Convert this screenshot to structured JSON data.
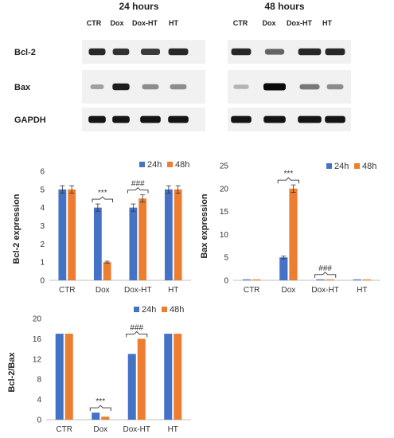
{
  "colors": {
    "h24": "#4472C4",
    "h48": "#ED7D31",
    "axis": "#BFBFBF",
    "band": "#1a1a1a"
  },
  "blots": {
    "panels": [
      {
        "title": "24 hours",
        "lanes": [
          "CTR",
          "Dox",
          "Dox-HT",
          "HT"
        ]
      },
      {
        "title": "48 hours",
        "lanes": [
          "CTR",
          "Dox",
          "Dox-HT",
          "HT"
        ]
      }
    ],
    "rows": [
      "Bcl-2",
      "Bax",
      "GAPDH"
    ],
    "intensity": {
      "Bcl-2": [
        [
          0.85,
          0.8,
          0.75,
          0.85
        ],
        [
          0.85,
          0.55,
          0.85,
          0.85
        ]
      ],
      "Bax": [
        [
          0.25,
          0.9,
          0.35,
          0.35
        ],
        [
          0.15,
          1.0,
          0.45,
          0.35
        ]
      ],
      "GAPDH": [
        [
          0.95,
          0.95,
          0.95,
          0.95
        ],
        [
          0.95,
          0.95,
          0.95,
          0.95
        ]
      ]
    }
  },
  "chart_data": [
    {
      "type": "bar",
      "categories": [
        "CTR",
        "Dox",
        "Dox-HT",
        "HT"
      ],
      "series": [
        {
          "name": "24h",
          "values": [
            5,
            4,
            4,
            5
          ],
          "errors": [
            0.2,
            0.2,
            0.2,
            0.2
          ]
        },
        {
          "name": "48h",
          "values": [
            5,
            1,
            4.5,
            5
          ],
          "errors": [
            0.2,
            0.05,
            0.2,
            0.2
          ]
        }
      ],
      "ylabel": "Bcl-2 expression",
      "ylim": [
        0,
        6
      ],
      "yticks": [
        "0",
        "1",
        "2",
        "3",
        "4",
        "5",
        "6"
      ],
      "legend": "top-right",
      "annotations": [
        {
          "text": "***",
          "category": "Dox"
        },
        {
          "text": "###",
          "category": "Dox-HT"
        }
      ]
    },
    {
      "type": "bar",
      "categories": [
        "CTR",
        "Dox",
        "Dox-HT",
        "HT"
      ],
      "series": [
        {
          "name": "24h",
          "values": [
            0.2,
            5,
            0.2,
            0.2
          ],
          "errors": [
            0,
            0.3,
            0,
            0
          ]
        },
        {
          "name": "48h",
          "values": [
            0.2,
            20,
            0.2,
            0.2
          ],
          "errors": [
            0,
            0.8,
            0,
            0
          ]
        }
      ],
      "ylabel": "Bax expression",
      "ylim": [
        0,
        25
      ],
      "yticks": [
        "0",
        "5",
        "10",
        "15",
        "20",
        "25"
      ],
      "legend": "top-right",
      "annotations": [
        {
          "text": "***",
          "category": "Dox"
        },
        {
          "text": "###",
          "category": "Dox-HT"
        }
      ]
    },
    {
      "type": "bar",
      "categories": [
        "CTR",
        "Dox",
        "Dox-HT",
        "HT"
      ],
      "series": [
        {
          "name": "24h",
          "values": [
            17,
            1.4,
            13,
            17
          ]
        },
        {
          "name": "48h",
          "values": [
            17,
            0.6,
            16,
            17
          ]
        }
      ],
      "ylabel": "Bcl-2/Bax",
      "ylim": [
        0,
        20
      ],
      "yticks": [
        "0",
        "4",
        "8",
        "12",
        "16",
        "20"
      ],
      "legend": "top-right",
      "annotations": [
        {
          "text": "***",
          "category": "Dox"
        },
        {
          "text": "###",
          "category": "Dox-HT"
        }
      ]
    }
  ]
}
